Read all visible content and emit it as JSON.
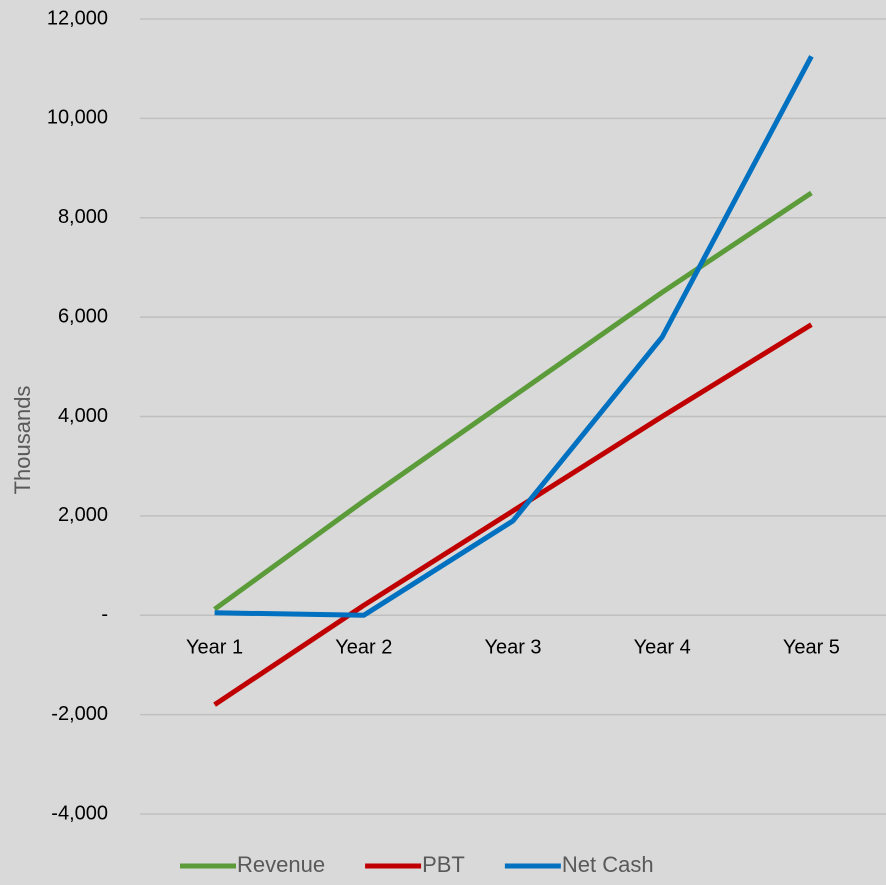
{
  "chart_data": {
    "type": "line",
    "y_label": "Thousands",
    "categories": [
      "Year 1",
      "Year 2",
      "Year 3",
      "Year 4",
      "Year 5"
    ],
    "series": [
      {
        "name": "Revenue",
        "color": "#5b9b3a",
        "values": [
          120,
          2300,
          4400,
          6500,
          8500
        ]
      },
      {
        "name": "PBT",
        "color": "#c00000",
        "values": [
          -1800,
          200,
          2100,
          4000,
          5850
        ]
      },
      {
        "name": "Net Cash",
        "color": "#0070c0",
        "values": [
          50,
          0,
          1900,
          5600,
          11250
        ]
      }
    ],
    "ylim": [
      -4000,
      12000
    ],
    "yticks": [
      {
        "value": -4000,
        "label": "-4,000"
      },
      {
        "value": -2000,
        "label": "-2,000"
      },
      {
        "value": 0,
        "label": "-"
      },
      {
        "value": 2000,
        "label": "2,000"
      },
      {
        "value": 4000,
        "label": "4,000"
      },
      {
        "value": 6000,
        "label": "6,000"
      },
      {
        "value": 8000,
        "label": "8,000"
      },
      {
        "value": 10000,
        "label": "10,000"
      },
      {
        "value": 12000,
        "label": "12,000"
      }
    ],
    "grid": true,
    "legend": "bottom"
  }
}
